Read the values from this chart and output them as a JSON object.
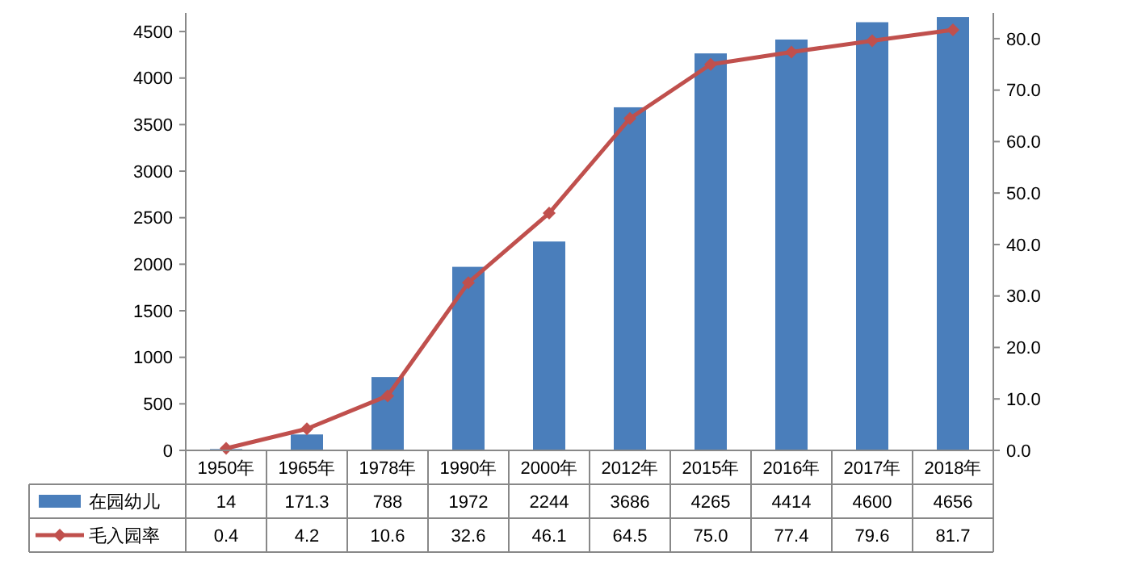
{
  "chart_data": {
    "type": "bar",
    "categories": [
      "1950年",
      "1965年",
      "1978年",
      "1990年",
      "2000年",
      "2012年",
      "2015年",
      "2016年",
      "2017年",
      "2018年"
    ],
    "series": [
      {
        "name": "在园幼儿",
        "color": "#4a7ebb",
        "values": [
          14,
          171.3,
          788,
          1972,
          2244,
          3686,
          4265,
          4414,
          4600,
          4656
        ],
        "value_labels": [
          "14",
          "171.3",
          "788",
          "1972",
          "2244",
          "3686",
          "4265",
          "4414",
          "4600",
          "4656"
        ]
      },
      {
        "name": "毛入园率",
        "type": "line",
        "axis": "y2",
        "color": "#c0504d",
        "marker": "diamond",
        "line_style": "solid",
        "values": [
          0.4,
          4.2,
          10.6,
          32.6,
          46.1,
          64.5,
          75.0,
          77.4,
          79.6,
          81.7
        ],
        "value_labels": [
          "0.4",
          "4.2",
          "10.6",
          "32.6",
          "46.1",
          "64.5",
          "75.0",
          "77.4",
          "79.6",
          "81.7"
        ]
      }
    ],
    "ylim": [
      0,
      4700
    ],
    "yticks": [
      0,
      500,
      1000,
      1500,
      2000,
      2500,
      3000,
      3500,
      4000,
      4500
    ],
    "y2lim": [
      0,
      85
    ],
    "y2ticks": [
      {
        "value": 0,
        "label": "0.0"
      },
      {
        "value": 10,
        "label": "10.0"
      },
      {
        "value": 20,
        "label": "20.0"
      },
      {
        "value": 30,
        "label": "30.0"
      },
      {
        "value": 40,
        "label": "40.0"
      },
      {
        "value": 50,
        "label": "50.0"
      },
      {
        "value": 60,
        "label": "60.0"
      },
      {
        "value": 70,
        "label": "70.0"
      },
      {
        "value": 80,
        "label": "80.0"
      }
    ],
    "legend": "bottom"
  }
}
